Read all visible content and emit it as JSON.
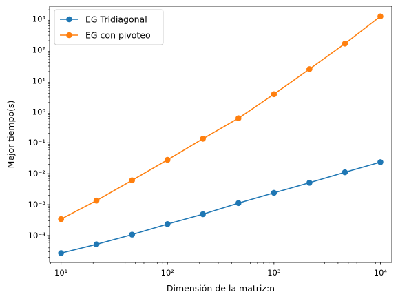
{
  "chart_data": {
    "type": "line",
    "xscale": "log",
    "yscale": "log",
    "xlabel": "Dimensión de la matriz:n",
    "ylabel": "Mejor tiempo(s)",
    "xlim": [
      7.8,
      12800
    ],
    "ylim": [
      1.35e-05,
      2600
    ],
    "grid": false,
    "legend_position": "top-left",
    "x_major_ticks": [
      10,
      100,
      1000,
      10000
    ],
    "y_major_ticks": [
      0.0001,
      0.001,
      0.01,
      0.1,
      1,
      10,
      100,
      1000
    ],
    "x": [
      10,
      21.5,
      46.4,
      100,
      215,
      464,
      1000,
      2154,
      4642,
      10000
    ],
    "series": [
      {
        "name": "EG Tridiagonal",
        "color": "#1f77b4",
        "values": [
          2.7e-05,
          5.2e-05,
          0.000107,
          0.000235,
          0.00049,
          0.00112,
          0.0024,
          0.0051,
          0.0111,
          0.0236
        ]
      },
      {
        "name": "EG con pivoteo",
        "color": "#ff7f0e",
        "values": [
          0.00034,
          0.00135,
          0.0061,
          0.028,
          0.135,
          0.62,
          3.7,
          24,
          160,
          1220
        ]
      }
    ]
  }
}
